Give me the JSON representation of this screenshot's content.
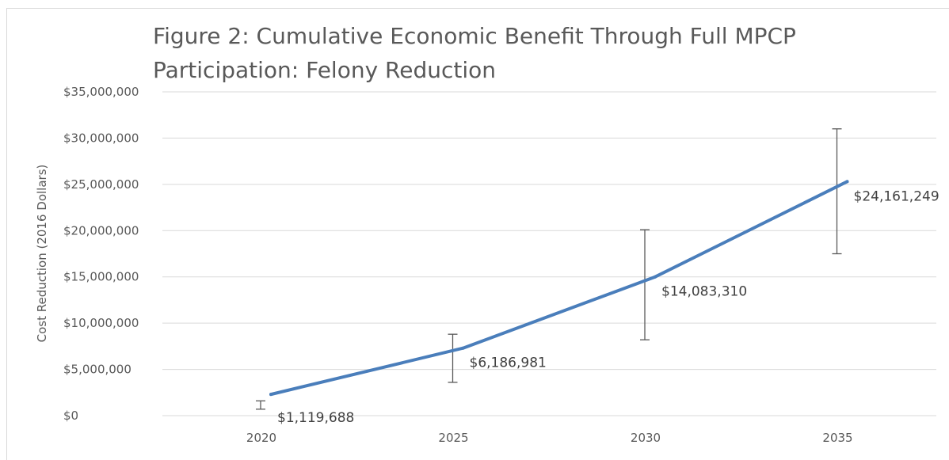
{
  "chart_data": {
    "type": "line",
    "title_line1": "Figure 2: Cumulative Economic Benefit Through Full MPCP",
    "title_line2": "Participation: Felony Reduction",
    "ylabel": "Cost Reduction (2016 Dollars)",
    "categories": [
      "2020",
      "2025",
      "2030",
      "2035"
    ],
    "yticks": [
      "$0",
      "$5,000,000",
      "$10,000,000",
      "$15,000,000",
      "$20,000,000",
      "$25,000,000",
      "$30,000,000",
      "$35,000,000"
    ],
    "ylim": [
      0,
      35000000
    ],
    "grid": true,
    "line_color": "#4a7ebb",
    "series": [
      {
        "values": [
          2300000,
          7300000,
          15000000,
          25300000
        ],
        "data_labels": [
          "$1,119,688",
          "$6,186,981",
          "$14,083,310",
          "$24,161,249"
        ],
        "error_bars": [
          {
            "low": 700000,
            "high": 1600000
          },
          {
            "low": 3600000,
            "high": 8800000
          },
          {
            "low": 8200000,
            "high": 20100000
          },
          {
            "low": 17500000,
            "high": 31000000
          }
        ]
      }
    ]
  }
}
